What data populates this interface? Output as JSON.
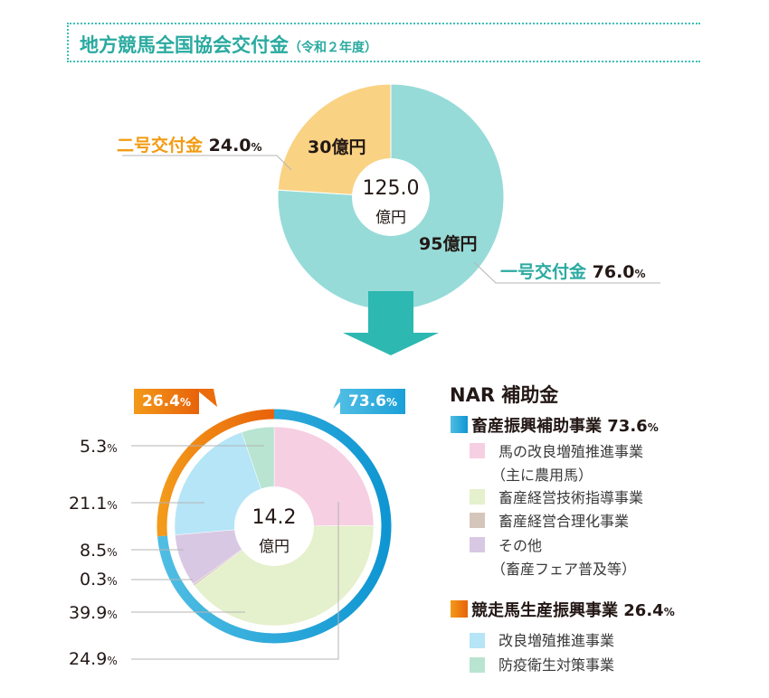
{
  "header": {
    "title": "地方競馬全国協会交付金",
    "subtitle": "（令和２年度）"
  },
  "colors": {
    "teal": "#96dbd8",
    "yellow": "#fad283",
    "title_teal": "#2aaaa0",
    "orange": "#f08c12",
    "blue": "#2ba7da",
    "pink": "#f6cfe2",
    "lightgreen": "#e5f0cc",
    "taupe": "#d5c6bb",
    "lavender": "#d9c8e3",
    "lightblue": "#b5e5f7",
    "mint": "#b8e4d1"
  },
  "chart_data": [
    {
      "type": "pie",
      "title": "地方競馬全国協会交付金（令和２年度）",
      "center_label": "125.0",
      "center_unit": "億円",
      "slices": [
        {
          "name": "一号交付金",
          "amount_label": "95億円",
          "amount": 95,
          "percent": 76.0,
          "percent_label": "76.0",
          "color": "#96dbd8"
        },
        {
          "name": "二号交付金",
          "amount_label": "30億円",
          "amount": 30,
          "percent": 24.0,
          "percent_label": "24.0",
          "color": "#fad283"
        }
      ]
    },
    {
      "type": "pie",
      "title": "NAR 補助金",
      "center_label": "14.2",
      "center_unit": "億円",
      "outer_ring": [
        {
          "name": "畜産振興補助事業",
          "percent": 73.6,
          "percent_label": "73.6",
          "color": "#2ba7da"
        },
        {
          "name": "競走馬生産振興事業",
          "percent": 26.4,
          "percent_label": "26.4",
          "color": "#f08c12"
        }
      ],
      "slices": [
        {
          "name": "馬の改良増殖推進事業（主に農用馬）",
          "percent": 24.9,
          "percent_label": "24.9",
          "color": "#f6cfe2",
          "group": "畜産振興補助事業"
        },
        {
          "name": "畜産経営技術指導事業",
          "percent": 39.9,
          "percent_label": "39.9",
          "color": "#e5f0cc",
          "group": "畜産振興補助事業"
        },
        {
          "name": "畜産経営合理化事業",
          "percent": 0.3,
          "percent_label": "0.3",
          "color": "#d5c6bb",
          "group": "畜産振興補助事業"
        },
        {
          "name": "その他（畜産フェア普及等）",
          "percent": 8.5,
          "percent_label": "8.5",
          "color": "#d9c8e3",
          "group": "畜産振興補助事業"
        },
        {
          "name": "改良増殖推進事業",
          "percent": 21.1,
          "percent_label": "21.1",
          "color": "#b5e5f7",
          "group": "競走馬生産振興事業"
        },
        {
          "name": "防疫衛生対策事業",
          "percent": 5.3,
          "percent_label": "5.3",
          "color": "#b8e4d1",
          "group": "競走馬生産振興事業"
        }
      ],
      "left_labels_order": [
        "5.3",
        "21.1",
        "8.5",
        "0.3",
        "39.9",
        "24.9"
      ]
    }
  ],
  "percent_sign": "%",
  "legend": {
    "title": "NAR 補助金",
    "groups": [
      {
        "label": "畜産振興補助事業",
        "percent": "73.6",
        "items": [
          {
            "line1": "馬の改良増殖推進事業",
            "line2": "（主に農用馬）"
          },
          {
            "line1": "畜産経営技術指導事業"
          },
          {
            "line1": "畜産経営合理化事業"
          },
          {
            "line1": "その他",
            "line2": "（畜産フェア普及等）"
          }
        ]
      },
      {
        "label": "競走馬生産振興事業",
        "percent": "26.4",
        "items": [
          {
            "line1": "改良増殖推進事業"
          },
          {
            "line1": "防疫衛生対策事業"
          }
        ]
      }
    ]
  }
}
